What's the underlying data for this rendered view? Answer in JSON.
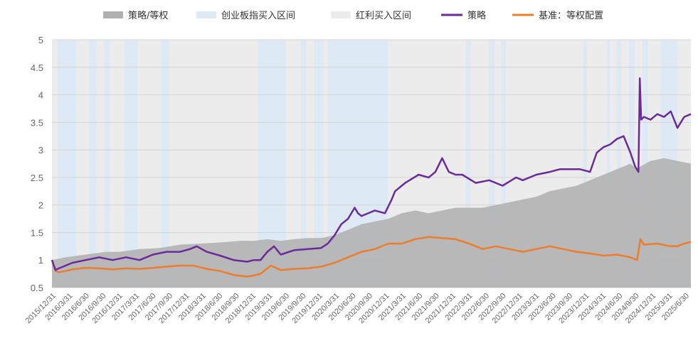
{
  "chart_data": {
    "type": "line",
    "title": "",
    "xlabel": "",
    "ylabel": "",
    "ylim": [
      0.5,
      5
    ],
    "y_ticks": [
      "0.5",
      "1",
      "1.5",
      "2",
      "2.5",
      "3",
      "3.5",
      "4",
      "4.5",
      "5"
    ],
    "x_range": [
      "2015/12/31",
      "2025/6/30"
    ],
    "x_ticks": [
      "2015/12/31",
      "2016/3/31",
      "2016/6/30",
      "2016/9/30",
      "2016/12/31",
      "2017/3/31",
      "2017/6/30",
      "2017/9/30",
      "2017/12/31",
      "2018/3/31",
      "2018/6/30",
      "2018/9/30",
      "2018/12/31",
      "2019/3/31",
      "2019/6/30",
      "2019/9/30",
      "2019/12/31",
      "2020/3/31",
      "2020/6/30",
      "2020/9/30",
      "2020/12/31",
      "2021/3/31",
      "2021/6/30",
      "2021/9/30",
      "2021/12/31",
      "2022/3/31",
      "2022/6/30",
      "2022/9/30",
      "2022/12/31",
      "2023/3/31",
      "2023/6/30",
      "2023/9/30",
      "2023/12/31",
      "2024/3/31",
      "2024/6/30",
      "2024/9/30",
      "2024/12/31",
      "2025/3/31",
      "2025/6/30"
    ],
    "legend_position": "top",
    "legend": [
      {
        "key": "ratio",
        "label": "策略/等权",
        "color": "#b0b0b0",
        "style": "area"
      },
      {
        "key": "cyb",
        "label": "创业板指买入区间",
        "color": "#dde9f5",
        "style": "band"
      },
      {
        "key": "div",
        "label": "红利买入区间",
        "color": "#ececec",
        "style": "band"
      },
      {
        "key": "strategy",
        "label": "策略",
        "color": "#6a2a9a",
        "style": "line"
      },
      {
        "key": "bench",
        "label": "基准：等权配置",
        "color": "#ee7d2b",
        "style": "line"
      }
    ],
    "cyb_intervals": [
      [
        2016.08,
        2016.36
      ],
      [
        2016.55,
        2016.66
      ],
      [
        2016.78,
        2016.86
      ],
      [
        2017.08,
        2017.27
      ],
      [
        2017.62,
        2017.74
      ],
      [
        2019.06,
        2019.47
      ],
      [
        2019.7,
        2019.78
      ],
      [
        2019.9,
        2020.03
      ],
      [
        2020.1,
        2021.0
      ],
      [
        2022.15,
        2022.22
      ],
      [
        2022.5,
        2022.58
      ],
      [
        2022.68,
        2022.75
      ],
      [
        2023.9,
        2023.95
      ],
      [
        2024.25,
        2024.3
      ],
      [
        2024.4,
        2024.46
      ],
      [
        2024.58,
        2024.66
      ],
      [
        2024.78,
        2024.86
      ],
      [
        2025.05,
        2025.3
      ]
    ],
    "series": [
      {
        "name": "策略",
        "key": "strategy",
        "x": [
          2015.997,
          2016.05,
          2016.1,
          2016.2,
          2016.3,
          2016.5,
          2016.7,
          2016.9,
          2017.1,
          2017.3,
          2017.5,
          2017.7,
          2017.9,
          2018.05,
          2018.15,
          2018.3,
          2018.5,
          2018.7,
          2018.9,
          2019.0,
          2019.1,
          2019.2,
          2019.3,
          2019.4,
          2019.6,
          2019.8,
          2020.0,
          2020.1,
          2020.2,
          2020.3,
          2020.4,
          2020.5,
          2020.55,
          2020.6,
          2020.8,
          2020.95,
          2021.05,
          2021.1,
          2021.25,
          2021.45,
          2021.6,
          2021.7,
          2021.8,
          2021.9,
          2022.0,
          2022.1,
          2022.3,
          2022.5,
          2022.7,
          2022.9,
          2023.0,
          2023.2,
          2023.4,
          2023.55,
          2023.7,
          2023.85,
          2024.0,
          2024.1,
          2024.2,
          2024.3,
          2024.4,
          2024.5,
          2024.6,
          2024.67,
          2024.72,
          2024.74,
          2024.76,
          2024.8,
          2024.9,
          2025.0,
          2025.1,
          2025.2,
          2025.3,
          2025.4,
          2025.5
        ],
        "values": [
          1.0,
          0.82,
          0.85,
          0.9,
          0.95,
          1.0,
          1.05,
          1.0,
          1.05,
          1.0,
          1.1,
          1.15,
          1.15,
          1.2,
          1.25,
          1.15,
          1.08,
          1.0,
          0.97,
          1.0,
          1.0,
          1.15,
          1.25,
          1.1,
          1.18,
          1.2,
          1.22,
          1.3,
          1.45,
          1.65,
          1.75,
          1.95,
          1.85,
          1.8,
          1.9,
          1.85,
          2.1,
          2.25,
          2.4,
          2.55,
          2.5,
          2.6,
          2.85,
          2.6,
          2.55,
          2.55,
          2.4,
          2.45,
          2.35,
          2.5,
          2.45,
          2.55,
          2.6,
          2.65,
          2.65,
          2.65,
          2.6,
          2.95,
          3.05,
          3.1,
          3.2,
          3.25,
          2.95,
          2.7,
          2.6,
          4.3,
          3.55,
          3.6,
          3.55,
          3.65,
          3.6,
          3.7,
          3.4,
          3.6,
          3.65
        ]
      },
      {
        "name": "基准：等权配置",
        "key": "bench",
        "x": [
          2015.997,
          2016.05,
          2016.1,
          2016.2,
          2016.3,
          2016.5,
          2016.7,
          2016.9,
          2017.1,
          2017.3,
          2017.5,
          2017.7,
          2017.9,
          2018.1,
          2018.3,
          2018.5,
          2018.7,
          2018.9,
          2019.0,
          2019.1,
          2019.25,
          2019.4,
          2019.6,
          2019.8,
          2020.0,
          2020.2,
          2020.4,
          2020.6,
          2020.8,
          2021.0,
          2021.2,
          2021.4,
          2021.6,
          2021.8,
          2022.0,
          2022.2,
          2022.4,
          2022.6,
          2022.8,
          2023.0,
          2023.2,
          2023.4,
          2023.6,
          2023.8,
          2024.0,
          2024.2,
          2024.4,
          2024.6,
          2024.7,
          2024.75,
          2024.8,
          2025.0,
          2025.2,
          2025.3,
          2025.4,
          2025.5
        ],
        "values": [
          1.0,
          0.8,
          0.78,
          0.8,
          0.83,
          0.86,
          0.85,
          0.83,
          0.85,
          0.84,
          0.86,
          0.88,
          0.9,
          0.9,
          0.84,
          0.8,
          0.73,
          0.7,
          0.72,
          0.75,
          0.9,
          0.82,
          0.84,
          0.85,
          0.88,
          0.95,
          1.05,
          1.15,
          1.2,
          1.3,
          1.3,
          1.38,
          1.42,
          1.4,
          1.38,
          1.3,
          1.2,
          1.25,
          1.2,
          1.15,
          1.2,
          1.25,
          1.2,
          1.15,
          1.12,
          1.08,
          1.1,
          1.05,
          1.0,
          1.38,
          1.28,
          1.3,
          1.25,
          1.25,
          1.3,
          1.33
        ]
      },
      {
        "name": "策略/等权",
        "key": "ratio",
        "x": [
          2015.997,
          2016.2,
          2016.5,
          2016.8,
          2017.0,
          2017.3,
          2017.6,
          2017.9,
          2018.2,
          2018.5,
          2018.8,
          2019.0,
          2019.2,
          2019.4,
          2019.6,
          2019.8,
          2020.0,
          2020.2,
          2020.4,
          2020.6,
          2020.8,
          2021.0,
          2021.2,
          2021.4,
          2021.6,
          2021.8,
          2022.0,
          2022.2,
          2022.4,
          2022.6,
          2022.8,
          2023.0,
          2023.2,
          2023.4,
          2023.6,
          2023.8,
          2024.0,
          2024.2,
          2024.4,
          2024.6,
          2024.7,
          2024.75,
          2024.9,
          2025.1,
          2025.3,
          2025.5
        ],
        "values": [
          1.0,
          1.05,
          1.1,
          1.15,
          1.15,
          1.2,
          1.22,
          1.28,
          1.3,
          1.32,
          1.35,
          1.35,
          1.38,
          1.35,
          1.38,
          1.4,
          1.4,
          1.45,
          1.55,
          1.65,
          1.7,
          1.75,
          1.85,
          1.9,
          1.85,
          1.9,
          1.95,
          1.95,
          1.95,
          2.0,
          2.05,
          2.1,
          2.15,
          2.25,
          2.3,
          2.35,
          2.45,
          2.55,
          2.65,
          2.75,
          2.65,
          2.7,
          2.8,
          2.85,
          2.8,
          2.75
        ]
      }
    ]
  }
}
